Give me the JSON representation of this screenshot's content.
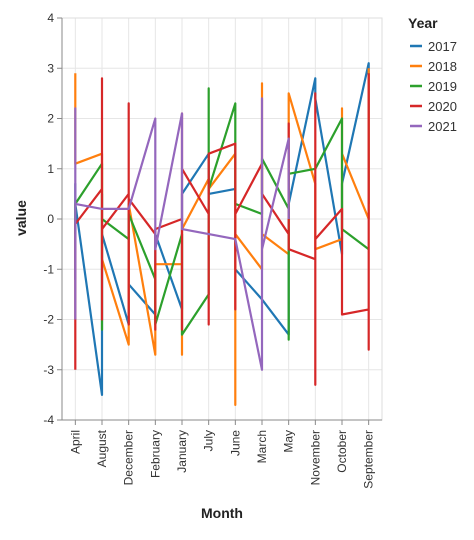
{
  "chart_data": {
    "type": "line",
    "xlabel": "Month",
    "ylabel": "value",
    "ylim": [
      -4,
      4
    ],
    "yticks": [
      -4,
      -3,
      -2,
      -1,
      0,
      1,
      2,
      3,
      4
    ],
    "grid": true,
    "legend_title": "Year",
    "legend_position": "top-right",
    "categories": [
      "April",
      "August",
      "December",
      "February",
      "January",
      "July",
      "June",
      "March",
      "May",
      "November",
      "October",
      "September"
    ],
    "series": [
      {
        "name": "2017",
        "color": "#1f77b4",
        "points": [
          [
            "April",
            -0.2
          ],
          [
            "April",
            0.7
          ],
          [
            "April",
            -1.2
          ],
          [
            "April",
            0.3
          ],
          [
            "August",
            -3.5
          ],
          [
            "August",
            0.5
          ],
          [
            "August",
            -1.0
          ],
          [
            "August",
            -0.3
          ],
          [
            "December",
            -2.1
          ],
          [
            "December",
            0.2
          ],
          [
            "December",
            -1.3
          ],
          [
            "February",
            -1.9
          ],
          [
            "February",
            -0.3
          ],
          [
            "January",
            -1.8
          ],
          [
            "January",
            0.5
          ],
          [
            "July",
            1.3
          ],
          [
            "July",
            0.5
          ],
          [
            "June",
            0.6
          ],
          [
            "June",
            -1.0
          ],
          [
            "March",
            -1.6
          ],
          [
            "May",
            -2.3
          ],
          [
            "May",
            0.3
          ],
          [
            "November",
            2.8
          ],
          [
            "November",
            2.4
          ],
          [
            "October",
            -0.7
          ],
          [
            "October",
            0.7
          ],
          [
            "September",
            3.1
          ],
          [
            "September",
            0.3
          ]
        ]
      },
      {
        "name": "2018",
        "color": "#ff7f0e",
        "points": [
          [
            "April",
            2.9
          ],
          [
            "April",
            1.1
          ],
          [
            "August",
            1.3
          ],
          [
            "August",
            -0.8
          ],
          [
            "December",
            -2.5
          ],
          [
            "December",
            0.3
          ],
          [
            "February",
            -2.7
          ],
          [
            "February",
            -0.9
          ],
          [
            "January",
            -0.9
          ],
          [
            "January",
            -2.7
          ],
          [
            "January",
            -0.2
          ],
          [
            "July",
            0.8
          ],
          [
            "July",
            0.6
          ],
          [
            "June",
            1.3
          ],
          [
            "June",
            -3.7
          ],
          [
            "June",
            -0.3
          ],
          [
            "March",
            -1.0
          ],
          [
            "March",
            2.7
          ],
          [
            "March",
            -0.3
          ],
          [
            "May",
            -0.7
          ],
          [
            "May",
            2.5
          ],
          [
            "November",
            0.7
          ],
          [
            "November",
            -0.6
          ],
          [
            "October",
            -0.4
          ],
          [
            "October",
            2.2
          ],
          [
            "October",
            1.3
          ],
          [
            "September",
            0.0
          ],
          [
            "September",
            3.0
          ]
        ]
      },
      {
        "name": "2019",
        "color": "#2ca02c",
        "points": [
          [
            "April",
            -0.3
          ],
          [
            "April",
            0.3
          ],
          [
            "August",
            1.1
          ],
          [
            "August",
            -2.2
          ],
          [
            "August",
            0.0
          ],
          [
            "December",
            -0.4
          ],
          [
            "December",
            0.1
          ],
          [
            "February",
            -1.2
          ],
          [
            "February",
            -2.1
          ],
          [
            "January",
            -0.3
          ],
          [
            "January",
            -2.3
          ],
          [
            "July",
            -1.5
          ],
          [
            "July",
            2.6
          ],
          [
            "July",
            0.6
          ],
          [
            "June",
            2.3
          ],
          [
            "June",
            0.3
          ],
          [
            "March",
            0.1
          ],
          [
            "March",
            1.2
          ],
          [
            "May",
            0.2
          ],
          [
            "May",
            -2.4
          ],
          [
            "May",
            0.9
          ],
          [
            "November",
            1.0
          ],
          [
            "October",
            2.0
          ],
          [
            "October",
            -0.2
          ],
          [
            "September",
            -0.6
          ]
        ]
      },
      {
        "name": "2020",
        "color": "#d62728",
        "points": [
          [
            "April",
            -3.0
          ],
          [
            "April",
            -0.1
          ],
          [
            "August",
            0.6
          ],
          [
            "August",
            2.8
          ],
          [
            "August",
            -2.0
          ],
          [
            "August",
            -0.2
          ],
          [
            "December",
            0.5
          ],
          [
            "December",
            -2.1
          ],
          [
            "December",
            2.3
          ],
          [
            "December",
            0.4
          ],
          [
            "February",
            -0.3
          ],
          [
            "February",
            -2.2
          ],
          [
            "February",
            -0.2
          ],
          [
            "January",
            0.0
          ],
          [
            "January",
            -2.2
          ],
          [
            "January",
            2.1
          ],
          [
            "January",
            1.0
          ],
          [
            "July",
            0.1
          ],
          [
            "July",
            -2.1
          ],
          [
            "July",
            1.3
          ],
          [
            "June",
            1.5
          ],
          [
            "June",
            -1.8
          ],
          [
            "June",
            0.1
          ],
          [
            "March",
            1.1
          ],
          [
            "March",
            0.5
          ],
          [
            "May",
            -0.3
          ],
          [
            "May",
            1.9
          ],
          [
            "May",
            -0.6
          ],
          [
            "November",
            -0.8
          ],
          [
            "November",
            -3.3
          ],
          [
            "November",
            2.5
          ],
          [
            "November",
            -0.4
          ],
          [
            "October",
            0.2
          ],
          [
            "October",
            -1.9
          ],
          [
            "September",
            -1.8
          ],
          [
            "September",
            -2.6
          ],
          [
            "September",
            2.9
          ]
        ]
      },
      {
        "name": "2021",
        "color": "#9467bd",
        "points": [
          [
            "April",
            -2.0
          ],
          [
            "April",
            2.2
          ],
          [
            "April",
            0.3
          ],
          [
            "August",
            0.2
          ],
          [
            "December",
            0.2
          ],
          [
            "February",
            2.0
          ],
          [
            "February",
            0.1
          ],
          [
            "February",
            -0.6
          ],
          [
            "January",
            2.1
          ],
          [
            "January",
            -0.2
          ],
          [
            "July",
            -0.3
          ],
          [
            "June",
            -0.4
          ],
          [
            "March",
            -3.0
          ],
          [
            "March",
            2.4
          ],
          [
            "March",
            -0.6
          ],
          [
            "May",
            1.6
          ],
          [
            "May",
            0.0
          ]
        ]
      }
    ]
  }
}
